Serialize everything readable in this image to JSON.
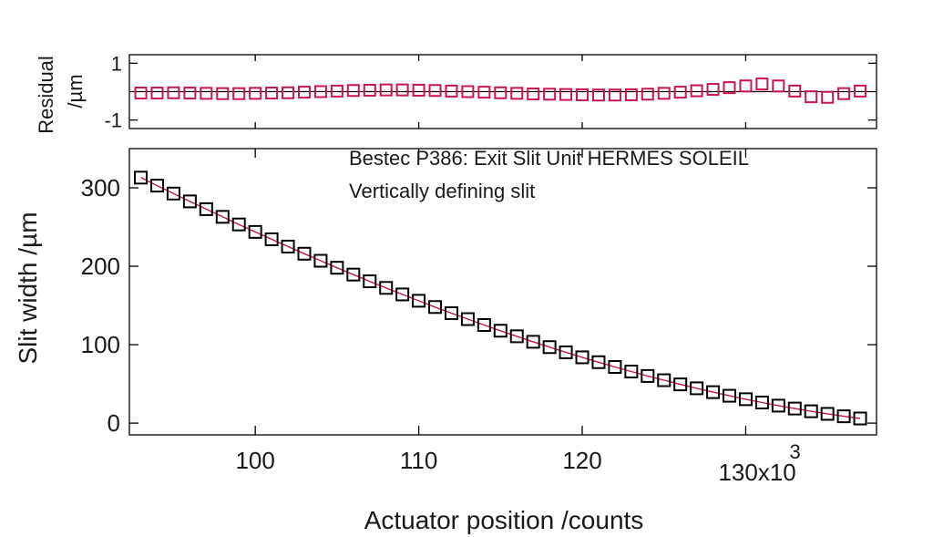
{
  "chart_data": [
    {
      "type": "scatter",
      "panel": "residual",
      "ylabel": "Residual\n/µm",
      "ylim": [
        -1.3,
        1.3
      ],
      "yticks": [
        1,
        -1
      ],
      "ytick_labels": [
        "1",
        "-1"
      ],
      "zero_line": true,
      "series": [
        {
          "marker": "open-square",
          "color": "#cc1450",
          "x": [
            93,
            94,
            95,
            96,
            97,
            98,
            99,
            100,
            101,
            102,
            103,
            104,
            105,
            106,
            107,
            108,
            109,
            110,
            111,
            112,
            113,
            114,
            115,
            116,
            117,
            118,
            119,
            120,
            121,
            122,
            123,
            124,
            125,
            126,
            127,
            128,
            129,
            130,
            131,
            132,
            133,
            134,
            135,
            136,
            137
          ],
          "y": [
            -0.05,
            -0.05,
            -0.04,
            -0.05,
            -0.06,
            -0.07,
            -0.07,
            -0.06,
            -0.05,
            -0.04,
            -0.02,
            0.0,
            0.02,
            0.04,
            0.05,
            0.06,
            0.06,
            0.05,
            0.04,
            0.02,
            0.0,
            -0.02,
            -0.04,
            -0.06,
            -0.08,
            -0.09,
            -0.1,
            -0.11,
            -0.12,
            -0.12,
            -0.11,
            -0.09,
            -0.06,
            -0.02,
            0.03,
            0.08,
            0.14,
            0.2,
            0.27,
            0.2,
            0.02,
            -0.18,
            -0.2,
            -0.07,
            0.02
          ]
        }
      ]
    },
    {
      "type": "scatter",
      "panel": "main",
      "xlabel": "Actuator position /counts",
      "ylabel": "Slit width /µm",
      "xlim": [
        92.3,
        138
      ],
      "ylim": [
        -15,
        350
      ],
      "xticks": [
        100,
        110,
        120,
        130
      ],
      "xtick_labels": [
        "100",
        "110",
        "120",
        "130x10"
      ],
      "x_multiplier_exponent": "3",
      "yticks": [
        0,
        100,
        200,
        300
      ],
      "ytick_labels": [
        "0",
        "100",
        "200",
        "300"
      ],
      "annotations": [
        "Bestec P386: Exit Slit Unit HERMES SOLEIL",
        "Vertically defining slit"
      ],
      "series": [
        {
          "marker": "open-square",
          "color": "#000000",
          "x": [
            93,
            94,
            95,
            96,
            97,
            98,
            99,
            100,
            101,
            102,
            103,
            104,
            105,
            106,
            107,
            108,
            109,
            110,
            111,
            112,
            113,
            114,
            115,
            116,
            117,
            118,
            119,
            120,
            121,
            122,
            123,
            124,
            125,
            126,
            127,
            128,
            129,
            130,
            131,
            132,
            133,
            134,
            135,
            136,
            137
          ],
          "y": [
            313.0,
            302.8,
            292.7,
            282.7,
            272.8,
            263.0,
            253.3,
            243.8,
            234.4,
            225.1,
            216.0,
            207.0,
            198.1,
            189.4,
            180.8,
            172.4,
            164.1,
            156.0,
            148.0,
            140.2,
            132.6,
            125.1,
            117.8,
            110.7,
            103.7,
            96.9,
            90.3,
            83.9,
            77.7,
            71.6,
            65.8,
            60.1,
            54.7,
            49.4,
            44.4,
            39.5,
            34.9,
            30.5,
            26.3,
            22.3,
            18.6,
            15.1,
            11.8,
            8.7,
            5.9
          ]
        },
        {
          "kind": "fit-line",
          "color": "#cc1450",
          "x": [
            93,
            94,
            95,
            96,
            97,
            98,
            99,
            100,
            101,
            102,
            103,
            104,
            105,
            106,
            107,
            108,
            109,
            110,
            111,
            112,
            113,
            114,
            115,
            116,
            117,
            118,
            119,
            120,
            121,
            122,
            123,
            124,
            125,
            126,
            127,
            128,
            129,
            130,
            131,
            132,
            133,
            134,
            135,
            136,
            137
          ],
          "y": [
            313.0,
            302.8,
            292.7,
            282.7,
            272.8,
            263.0,
            253.3,
            243.8,
            234.4,
            225.1,
            216.0,
            207.0,
            198.1,
            189.4,
            180.8,
            172.4,
            164.1,
            156.0,
            148.0,
            140.2,
            132.6,
            125.1,
            117.8,
            110.7,
            103.7,
            96.9,
            90.3,
            83.9,
            77.7,
            71.6,
            65.8,
            60.1,
            54.7,
            49.4,
            44.4,
            39.5,
            34.9,
            30.5,
            26.3,
            22.3,
            18.6,
            15.1,
            11.8,
            8.7,
            5.9
          ]
        }
      ]
    }
  ]
}
